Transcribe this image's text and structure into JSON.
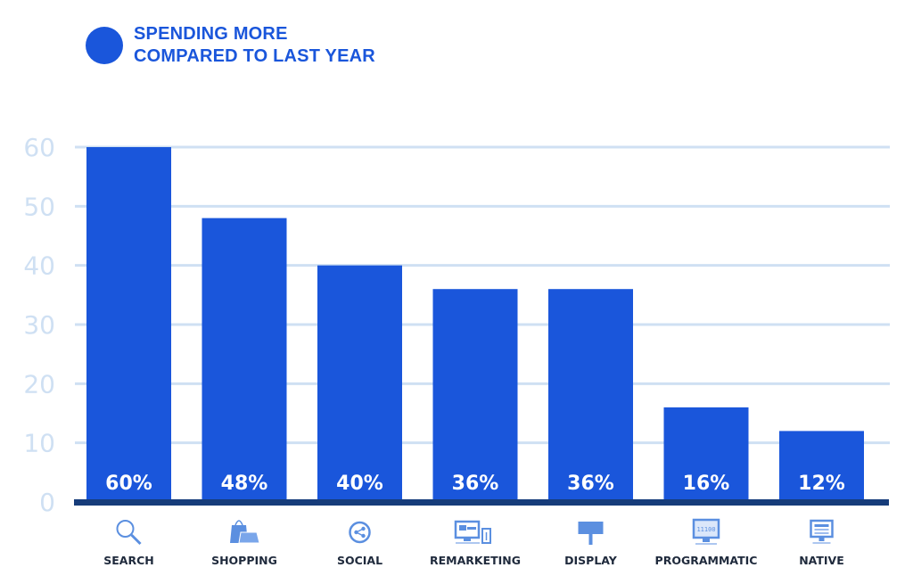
{
  "colors": {
    "bar": "#1a56db",
    "baseline": "#163c7a",
    "grid": "#cfe0f3",
    "icon": "#5b8fe0",
    "legend_text": "#1a56db"
  },
  "chart_data": {
    "type": "bar",
    "title": "",
    "legend": [
      {
        "label_lines": [
          "SPENDING MORE",
          "COMPARED TO LAST YEAR"
        ],
        "marker": "circle",
        "placement": "top-left"
      }
    ],
    "categories": [
      "SEARCH",
      "SHOPPING",
      "SOCIAL",
      "REMARKETING",
      "DISPLAY",
      "PROGRAMMATIC",
      "NATIVE"
    ],
    "category_icons": [
      "search-icon",
      "shopping-bags-icon",
      "share-icon",
      "desktop-mobile-icon",
      "billboard-icon",
      "code-monitor-icon",
      "monitor-article-icon"
    ],
    "series": [
      {
        "name": "Spending more compared to last year",
        "values": [
          60,
          48,
          40,
          36,
          36,
          16,
          12
        ]
      }
    ],
    "data_labels": [
      "60%",
      "48%",
      "40%",
      "36%",
      "36%",
      "16%",
      "12%"
    ],
    "xlabel": "",
    "ylabel": "",
    "ylim": [
      0,
      60
    ],
    "yticks": [
      0,
      10,
      20,
      30,
      40,
      50,
      60
    ],
    "ytick_labels": [
      "0",
      "10",
      "20",
      "30",
      "40",
      "50",
      "60"
    ],
    "grid": true
  }
}
